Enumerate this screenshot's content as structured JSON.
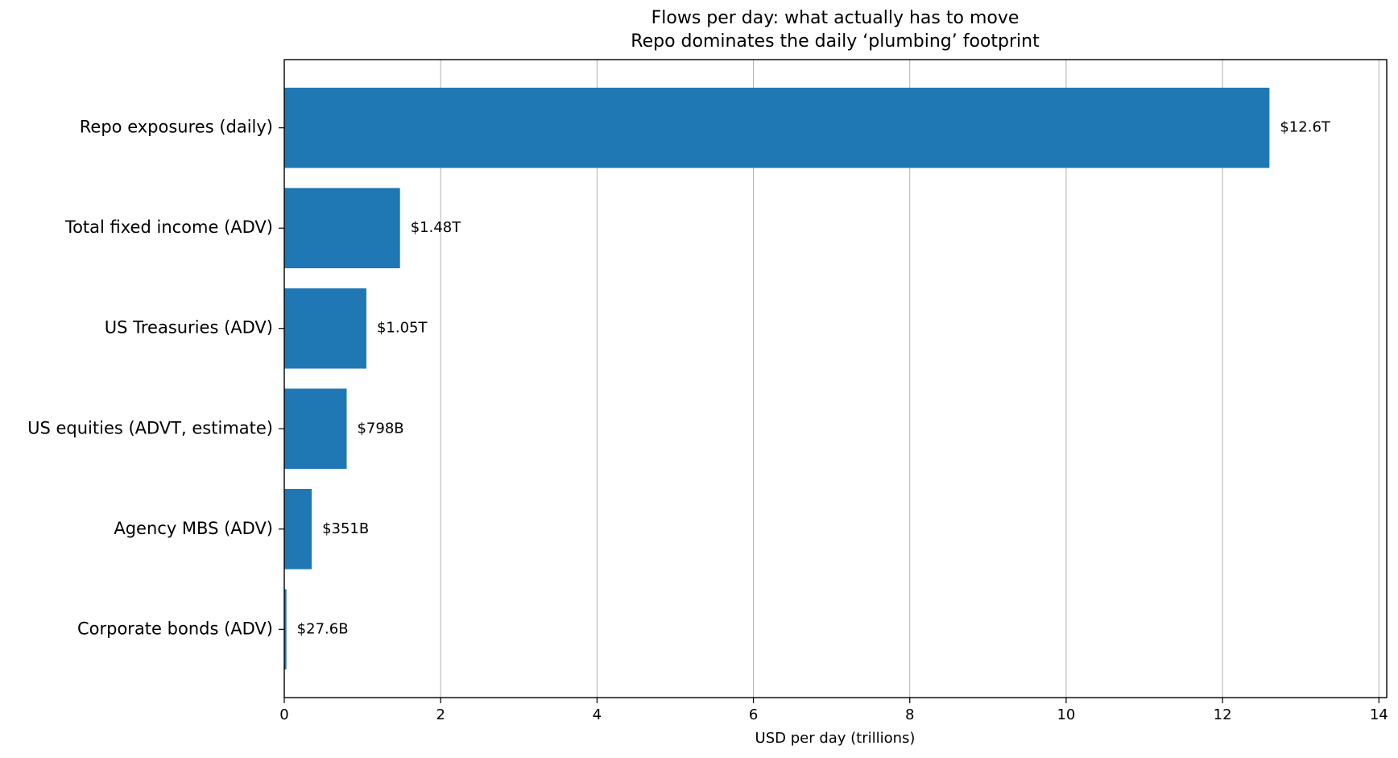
{
  "chart_data": {
    "type": "barh",
    "title": "Flows per day: what actually has to move",
    "subtitle": "Repo dominates the daily ‘plumbing’ footprint",
    "x_label": "USD per day (trillions)",
    "categories": [
      "Repo exposures (daily)",
      "Total fixed income (ADV)",
      "US Treasuries (ADV)",
      "US equities (ADVT, estimate)",
      "Agency MBS (ADV)",
      "Corporate bonds (ADV)"
    ],
    "values": [
      12.6,
      1.48,
      1.05,
      0.798,
      0.351,
      0.0276
    ],
    "value_labels": [
      "$12.6T",
      "$1.48T",
      "$1.05T",
      "$798B",
      "$351B",
      "$27.6B"
    ],
    "color": "#1f77b4",
    "xlim": [
      0,
      14.1
    ],
    "xticks": [
      0,
      2,
      4,
      6,
      8,
      10,
      12,
      14
    ],
    "grid": true
  }
}
